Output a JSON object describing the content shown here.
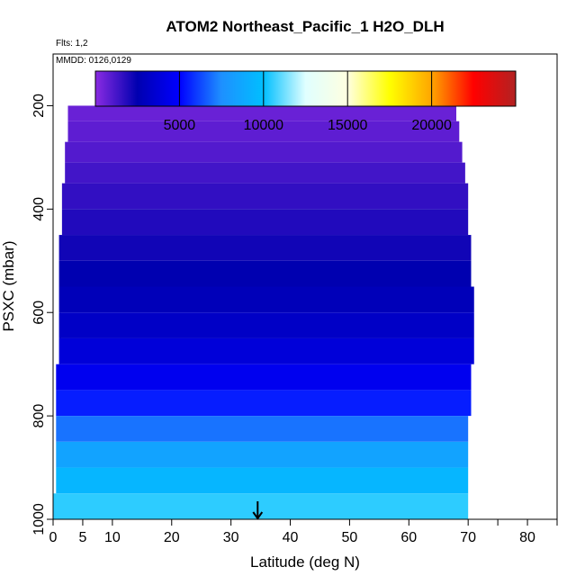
{
  "chart_data": {
    "type": "heatmap",
    "title": "ATOM2 Northeast_Pacific_1 H2O_DLH",
    "subtitle_flights": "Flts: 1,2",
    "subtitle_dates": "MMDD: 0126,0129",
    "xlabel": "Latitude (deg N)",
    "ylabel": "PSXC (mbar)",
    "xlim": [
      0,
      85
    ],
    "ylim": [
      1000,
      100
    ],
    "x_ticks": [
      0,
      5,
      10,
      20,
      30,
      40,
      50,
      60,
      70,
      80
    ],
    "x_tick_labels": [
      "0",
      "5",
      "10",
      "20",
      "30",
      "40",
      "50",
      "60",
      "70",
      "80"
    ],
    "x_minor_ticks": [
      75,
      85
    ],
    "y_ticks": [
      200,
      400,
      600,
      800,
      1000
    ],
    "y_tick_labels": [
      "200",
      "400",
      "600",
      "800",
      "1000"
    ],
    "colorbar": {
      "range": [
        0,
        25000
      ],
      "ticks": [
        5000,
        10000,
        15000,
        20000
      ],
      "tick_labels": [
        "5000",
        "10000",
        "15000",
        "20000"
      ],
      "colors": [
        "#8a2be2",
        "#0000b0",
        "#0000ff",
        "#1e90ff",
        "#00bfff",
        "#e0ffff",
        "#ffffe0",
        "#ffff00",
        "#ffa500",
        "#ff0000",
        "#b22222"
      ]
    },
    "arrow_latitude": 34.5,
    "pressure_bands": [
      {
        "p_top": 180,
        "p_bot": 200,
        "lat_min": 11,
        "lat_max": 67,
        "value": 300
      },
      {
        "p_top": 200,
        "p_bot": 230,
        "lat_min": 2.5,
        "lat_max": 68,
        "value": 600
      },
      {
        "p_top": 230,
        "p_bot": 270,
        "lat_min": 2.5,
        "lat_max": 68.5,
        "value": 800
      },
      {
        "p_top": 270,
        "p_bot": 310,
        "lat_min": 2,
        "lat_max": 69,
        "value": 1000
      },
      {
        "p_top": 310,
        "p_bot": 350,
        "lat_min": 2,
        "lat_max": 69.5,
        "value": 1300
      },
      {
        "p_top": 350,
        "p_bot": 400,
        "lat_min": 1.5,
        "lat_max": 70,
        "value": 1600
      },
      {
        "p_top": 400,
        "p_bot": 450,
        "lat_min": 1.5,
        "lat_max": 70,
        "value": 1900
      },
      {
        "p_top": 450,
        "p_bot": 500,
        "lat_min": 1,
        "lat_max": 70.5,
        "value": 2200
      },
      {
        "p_top": 500,
        "p_bot": 550,
        "lat_min": 1,
        "lat_max": 70.5,
        "value": 2500
      },
      {
        "p_top": 550,
        "p_bot": 600,
        "lat_min": 1,
        "lat_max": 71,
        "value": 2800
      },
      {
        "p_top": 600,
        "p_bot": 650,
        "lat_min": 1,
        "lat_max": 71,
        "value": 3200
      },
      {
        "p_top": 650,
        "p_bot": 700,
        "lat_min": 1,
        "lat_max": 71,
        "value": 3800
      },
      {
        "p_top": 700,
        "p_bot": 750,
        "lat_min": 0.5,
        "lat_max": 70.5,
        "value": 4500
      },
      {
        "p_top": 750,
        "p_bot": 800,
        "lat_min": 0.5,
        "lat_max": 70.5,
        "value": 5500
      },
      {
        "p_top": 800,
        "p_bot": 850,
        "lat_min": 0.5,
        "lat_max": 70,
        "value": 7000
      },
      {
        "p_top": 850,
        "p_bot": 900,
        "lat_min": 0.5,
        "lat_max": 70,
        "value": 8500
      },
      {
        "p_top": 900,
        "p_bot": 950,
        "lat_min": 0.5,
        "lat_max": 70,
        "value": 9500
      },
      {
        "p_top": 950,
        "p_bot": 1000,
        "lat_min": 0,
        "lat_max": 70,
        "value": 10500
      }
    ],
    "grid": false,
    "legend": "colorbar top"
  }
}
